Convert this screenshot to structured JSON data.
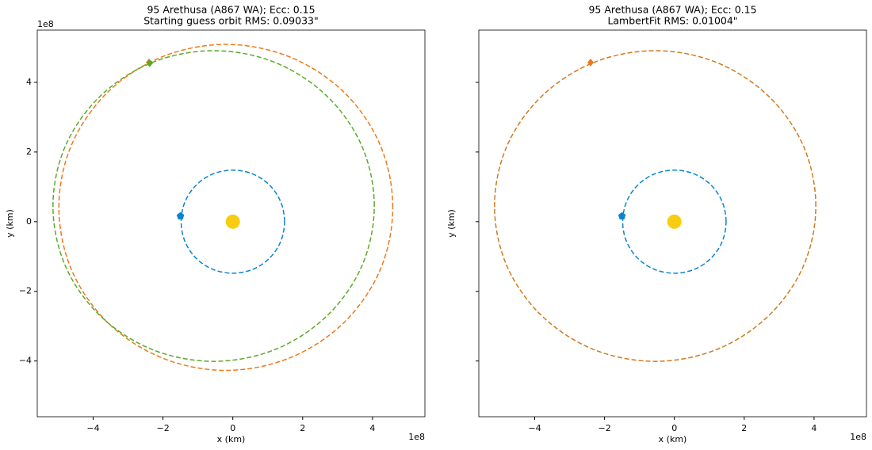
{
  "chart_data": [
    {
      "type": "line",
      "title": "95 Arethusa (A867 WA); Ecc: 0.15",
      "subtitle": "Starting guess orbit RMS: 0.09033\"",
      "xlabel": "x (km)",
      "ylabel": "y (km)",
      "x_offset_label": "1e8",
      "y_offset_label": "1e8",
      "xlim": [
        -5.6,
        5.5
      ],
      "ylim": [
        -5.6,
        5.5
      ],
      "xticks": [
        {
          "value": -4,
          "label": "−4"
        },
        {
          "value": -2,
          "label": "−2"
        },
        0,
        2,
        4
      ],
      "yticks": [
        {
          "value": -4,
          "label": "−4"
        },
        {
          "value": -2,
          "label": "−2"
        },
        0,
        2,
        4
      ],
      "ytick_labels": true,
      "series": [
        {
          "color": "#0a84cc",
          "style": "dashed",
          "closed": true,
          "x": [
            1.48,
            1.37,
            1.05,
            0.57,
            0,
            -0.57,
            -1.05,
            -1.37,
            -1.48,
            -1.37,
            -1.05,
            -0.57,
            0,
            0.57,
            1.05,
            1.37
          ],
          "values": [
            0,
            0.57,
            1.05,
            1.37,
            1.48,
            1.37,
            1.05,
            0.57,
            0,
            -0.57,
            -1.05,
            -1.37,
            -1.48,
            -1.37,
            -1.05,
            -0.57
          ]
        },
        {
          "color": "#f07818",
          "style": "dashed",
          "closed": true,
          "x": [
            4.58,
            4.22,
            3.18,
            1.63,
            -0.2,
            -2.03,
            -3.58,
            -4.62,
            -4.98,
            -4.62,
            -3.58,
            -2.03,
            -0.2,
            1.63,
            3.18,
            4.22
          ],
          "values": [
            0.41,
            2.2,
            3.72,
            4.73,
            5.09,
            4.73,
            3.72,
            2.2,
            0.41,
            -1.38,
            -2.9,
            -3.91,
            -4.27,
            -3.91,
            -2.9,
            -1.38
          ]
        },
        {
          "color": "#5aaa28",
          "style": "dashed",
          "closed": true,
          "x": [
            4.05,
            3.7,
            2.7,
            1.21,
            -0.55,
            -2.31,
            -3.8,
            -4.8,
            -5.15,
            -4.8,
            -3.8,
            -2.31,
            -0.55,
            1.21,
            2.7,
            3.7
          ],
          "values": [
            0.45,
            2.16,
            3.6,
            4.57,
            4.91,
            4.57,
            3.6,
            2.16,
            0.45,
            -1.26,
            -2.7,
            -3.67,
            -4.01,
            -3.67,
            -2.7,
            -1.26
          ]
        },
        {
          "color": "#f8cc10",
          "marker": "sun",
          "x": [
            0
          ],
          "values": [
            0
          ]
        },
        {
          "color": "#0a84cc",
          "marker": "pentagon",
          "x": [
            -1.5
          ],
          "values": [
            0.16
          ]
        },
        {
          "color": "#f07818",
          "marker": "diamond",
          "x": [
            -2.4
          ],
          "values": [
            4.57
          ]
        },
        {
          "color": "#5aaa28",
          "marker": "diamond",
          "x": [
            -2.38
          ],
          "values": [
            4.55
          ]
        }
      ]
    },
    {
      "type": "line",
      "title": "95 Arethusa (A867 WA); Ecc: 0.15",
      "subtitle": "LambertFit RMS: 0.01004\"",
      "xlabel": "x (km)",
      "ylabel": "y (km)",
      "x_offset_label": "1e8",
      "xlim": [
        -5.6,
        5.5
      ],
      "ylim": [
        -5.6,
        5.5
      ],
      "xticks": [
        {
          "value": -4,
          "label": "−4"
        },
        {
          "value": -2,
          "label": "−2"
        },
        0,
        2,
        4
      ],
      "yticks": [
        -4,
        -2,
        0,
        2,
        4
      ],
      "ytick_labels": false,
      "series": [
        {
          "color": "#0a84cc",
          "style": "dashed",
          "closed": true,
          "x": [
            1.48,
            1.37,
            1.05,
            0.57,
            0,
            -0.57,
            -1.05,
            -1.37,
            -1.48,
            -1.37,
            -1.05,
            -0.57,
            0,
            0.57,
            1.05,
            1.37
          ],
          "values": [
            0,
            0.57,
            1.05,
            1.37,
            1.48,
            1.37,
            1.05,
            0.57,
            0,
            -0.57,
            -1.05,
            -1.37,
            -1.48,
            -1.37,
            -1.05,
            -0.57
          ]
        },
        {
          "color": "#d07a1c",
          "style": "dashed",
          "closed": true,
          "x": [
            4.05,
            3.7,
            2.7,
            1.21,
            -0.55,
            -2.31,
            -3.8,
            -4.8,
            -5.15,
            -4.8,
            -3.8,
            -2.31,
            -0.55,
            1.21,
            2.7,
            3.7
          ],
          "values": [
            0.45,
            2.16,
            3.6,
            4.57,
            4.91,
            4.57,
            3.6,
            2.16,
            0.45,
            -1.26,
            -2.7,
            -3.67,
            -4.01,
            -3.67,
            -2.7,
            -1.26
          ]
        },
        {
          "color": "#f8cc10",
          "marker": "sun",
          "x": [
            0
          ],
          "values": [
            0
          ]
        },
        {
          "color": "#0a84cc",
          "marker": "pentagon",
          "x": [
            -1.5
          ],
          "values": [
            0.16
          ]
        },
        {
          "color": "#f07818",
          "marker": "diamond",
          "x": [
            -2.4
          ],
          "values": [
            4.57
          ]
        }
      ]
    }
  ]
}
